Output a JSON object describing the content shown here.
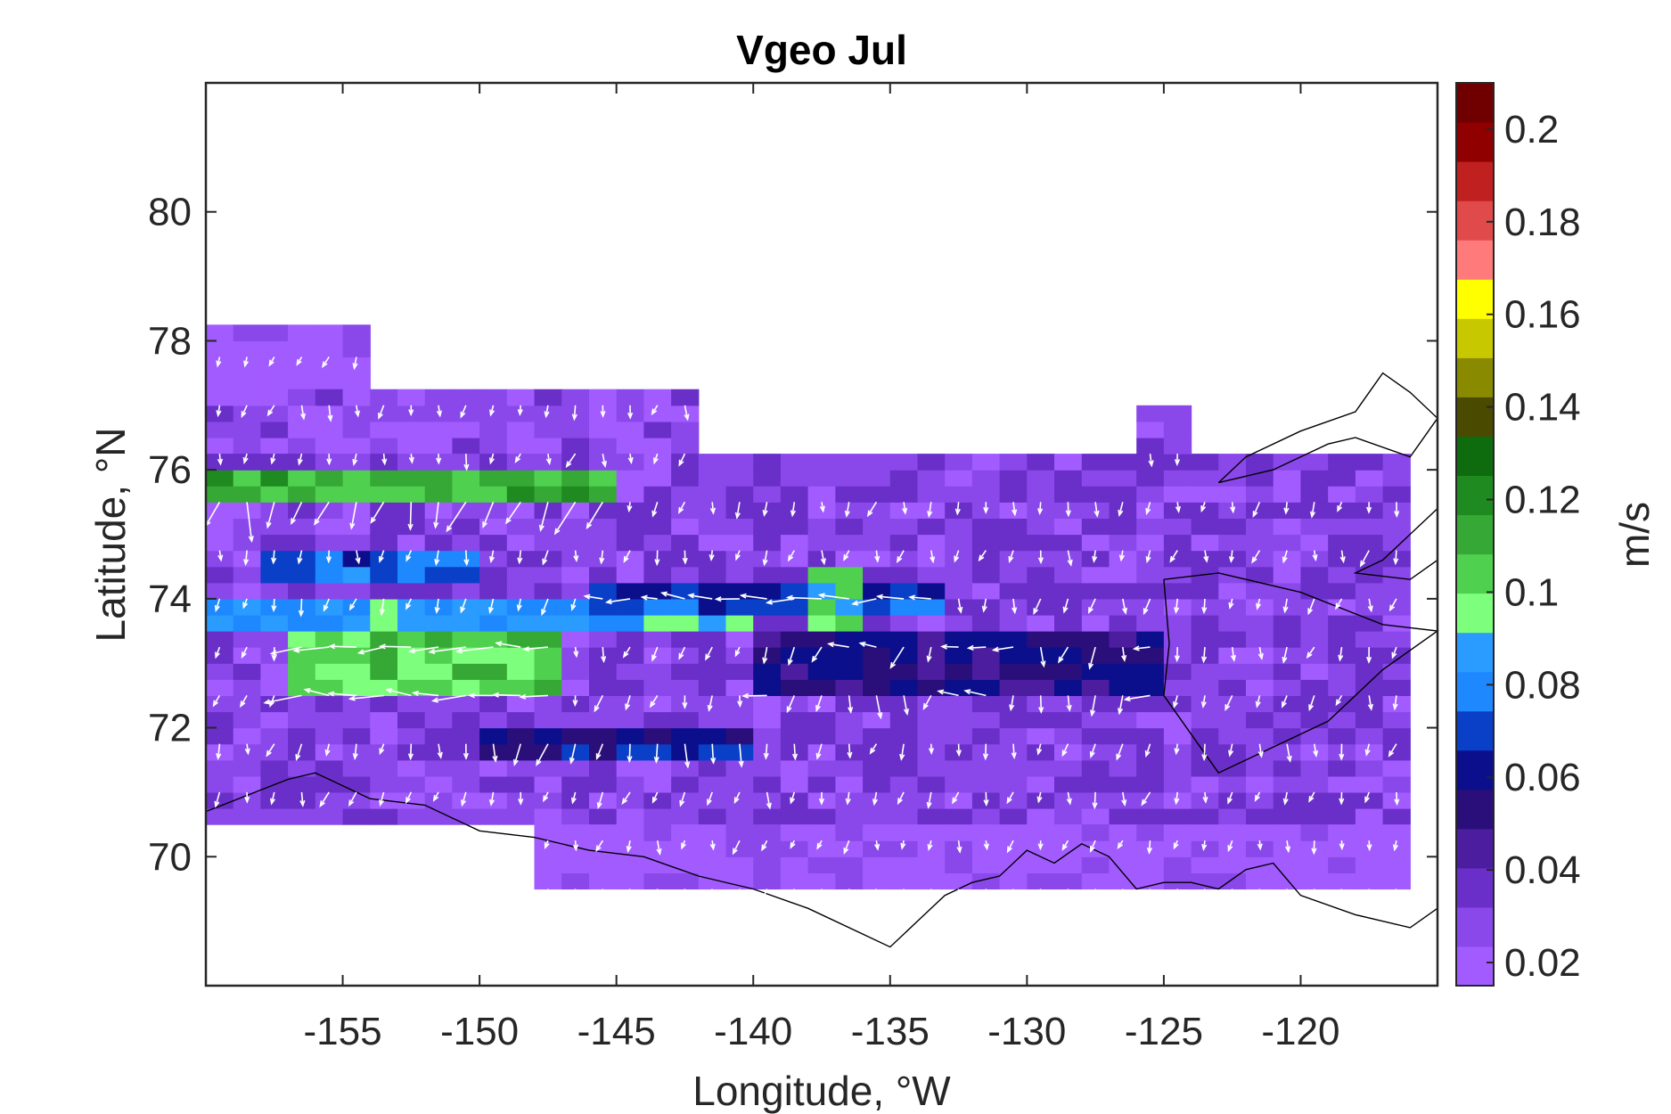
{
  "chart_data": {
    "type": "heatmap",
    "title": "Vgeo Jul",
    "xlabel": "Longitude, °W",
    "ylabel": "Latitude, °N",
    "xlim": [
      -160,
      -115
    ],
    "ylim": [
      68,
      82
    ],
    "xticks": [
      -155,
      -150,
      -145,
      -140,
      -135,
      -130,
      -125,
      -120
    ],
    "xtick_labels": [
      "-155",
      "-150",
      "-145",
      "-140",
      "-135",
      "-130",
      "-125",
      "-120"
    ],
    "yticks": [
      70,
      72,
      74,
      76,
      78,
      80
    ],
    "ytick_labels": [
      "70",
      "72",
      "74",
      "76",
      "78",
      "80"
    ],
    "colorbar": {
      "label": "m/s",
      "range": [
        0.015,
        0.21
      ],
      "ticks": [
        0.02,
        0.04,
        0.06,
        0.08,
        0.1,
        0.12,
        0.14,
        0.16,
        0.18,
        0.2
      ],
      "tick_labels": [
        "0.02",
        "0.04",
        "0.06",
        "0.08",
        "0.1",
        "0.12",
        "0.14",
        "0.16",
        "0.18",
        "0.2"
      ],
      "colors": [
        "#a25bff",
        "#8a48ea",
        "#6a2fc8",
        "#4c1d9e",
        "#2a0e7a",
        "#0b0f8c",
        "#0a3fc8",
        "#1e88ff",
        "#2a9bff",
        "#7dff7d",
        "#4fd04f",
        "#35a835",
        "#1f8a1f",
        "#0e6b0e",
        "#4a4a00",
        "#8a8a00",
        "#c8c800",
        "#ffff00",
        "#ff7a7a",
        "#e04a4a",
        "#c02020",
        "#900000",
        "#700000"
      ]
    },
    "field": {
      "lon_step": 1,
      "lat_step": 0.5,
      "regions": [
        {
          "lon": [
            -160,
            -154
          ],
          "lat": [
            77.25,
            78.25
          ],
          "v": 0.02
        },
        {
          "lon": [
            -160,
            -142
          ],
          "lat": [
            76.25,
            77.25
          ],
          "v": 0.025
        },
        {
          "lon": [
            -160,
            -116
          ],
          "lat": [
            70.5,
            76.25
          ],
          "v": 0.03
        },
        {
          "lon": [
            -148,
            -116
          ],
          "lat": [
            69.5,
            70.5
          ],
          "v": 0.02
        },
        {
          "lon": [
            -126,
            -124
          ],
          "lat": [
            76.25,
            77.0
          ],
          "v": 0.03
        }
      ],
      "bands": [
        {
          "lon": [
            -160,
            -145
          ],
          "lat": [
            75.5,
            76.0
          ],
          "v": 0.11
        },
        {
          "lon": [
            -160,
            -140
          ],
          "lat": [
            73.5,
            74.0
          ],
          "v": 0.085
        },
        {
          "lon": [
            -157,
            -147
          ],
          "lat": [
            72.5,
            73.5
          ],
          "v": 0.105
        },
        {
          "lon": [
            -146,
            -133
          ],
          "lat": [
            73.75,
            74.25
          ],
          "v": 0.07
        },
        {
          "lon": [
            -150,
            -140
          ],
          "lat": [
            71.5,
            72.0
          ],
          "v": 0.06
        },
        {
          "lon": [
            -140,
            -125
          ],
          "lat": [
            72.5,
            73.5
          ],
          "v": 0.055
        },
        {
          "lon": [
            -138,
            -136
          ],
          "lat": [
            73.5,
            74.5
          ],
          "v": 0.1
        },
        {
          "lon": [
            -158,
            -150
          ],
          "lat": [
            74.25,
            74.75
          ],
          "v": 0.075
        }
      ]
    },
    "vectors": {
      "lon_step": 1,
      "lat_step": 0.33,
      "dominant_direction": "southward/westward",
      "color": "#ffffff"
    },
    "coastline": {
      "color": "#000000",
      "features": [
        "Alaska north coast",
        "Banks Island",
        "Queen Elizabeth Islands"
      ]
    },
    "grid": false,
    "legend": "none"
  }
}
